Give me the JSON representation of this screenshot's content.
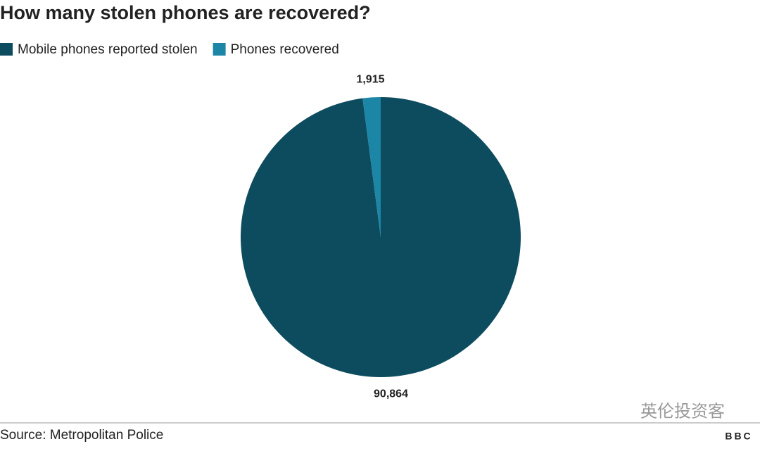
{
  "chart_data": {
    "type": "pie",
    "title": "How many stolen phones are recovered?",
    "categories": [
      "Mobile phones reported stolen",
      "Phones recovered"
    ],
    "values": [
      90864,
      1915
    ],
    "value_labels": [
      "90,864",
      "1,915"
    ],
    "colors": [
      "#0d4b5f",
      "#1b86a6"
    ],
    "legend": "top-left",
    "source": "Source: Metropolitan Police",
    "watermark": "英伦投资客",
    "logo": "BBC"
  }
}
